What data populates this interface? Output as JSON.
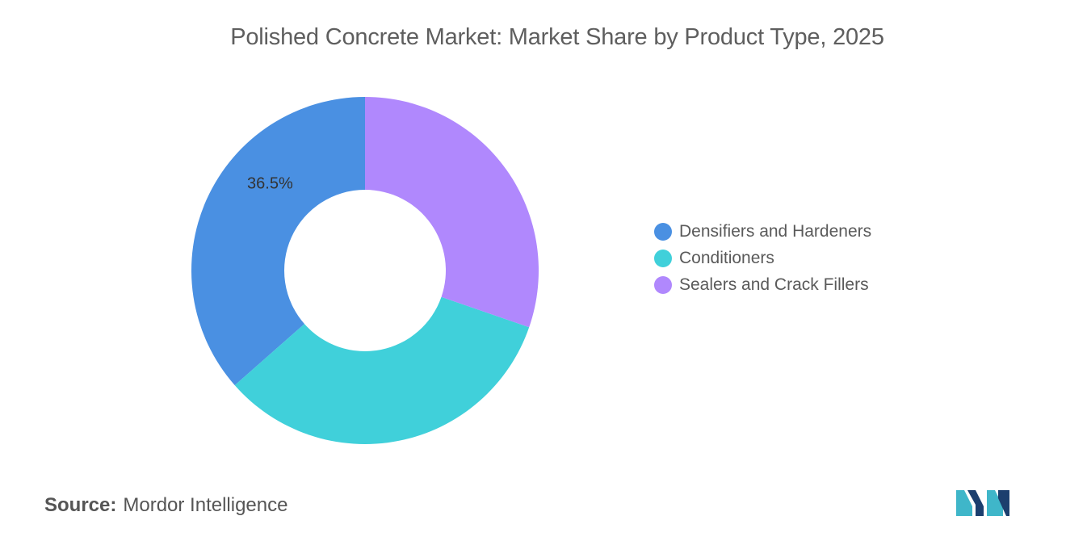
{
  "chart_data": {
    "type": "pie",
    "title": "Polished Concrete Market: Market Share by Product Type, 2025",
    "donut": true,
    "series": [
      {
        "name": "Densifiers and Hardeners",
        "value": 36.5,
        "color": "#4a90e2",
        "label": "36.5%"
      },
      {
        "name": "Conditioners",
        "value": 33.2,
        "color": "#40d0da",
        "label": ""
      },
      {
        "name": "Sealers and Crack Fillers",
        "value": 30.3,
        "color": "#b088fd",
        "label": ""
      }
    ],
    "legend_position": "right"
  },
  "source": {
    "label": "Source:",
    "value": "Mordor Intelligence"
  },
  "logo": {
    "icon": "mordor-intelligence-logo-icon",
    "colors": [
      "#1c3f6e",
      "#3fb6c9"
    ]
  }
}
